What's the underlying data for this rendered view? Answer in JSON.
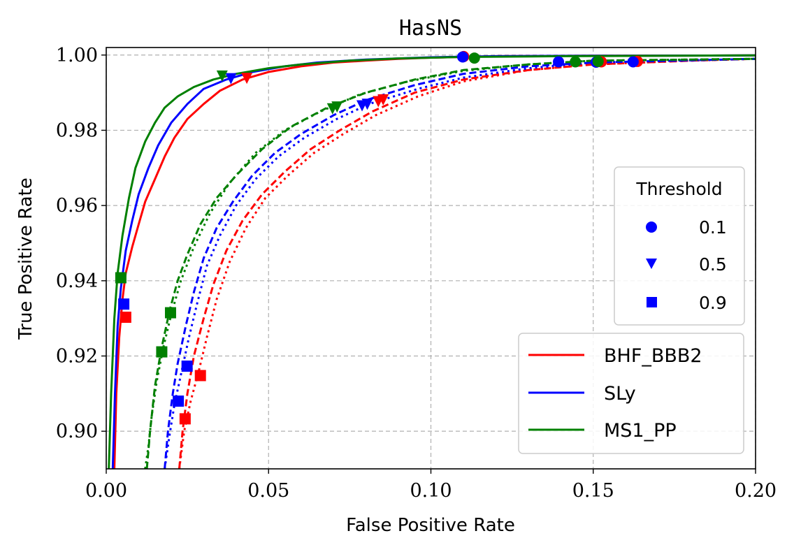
{
  "chart_data": {
    "type": "line",
    "title": "HasNS",
    "xlabel": "False Positive Rate",
    "ylabel": "True Positive Rate",
    "xlim": [
      0.0,
      0.2
    ],
    "ylim": [
      0.89,
      1.002
    ],
    "xticks": [
      0.0,
      0.05,
      0.1,
      0.15,
      0.2
    ],
    "xtick_labels": [
      "0.00",
      "0.05",
      "0.10",
      "0.15",
      "0.20"
    ],
    "yticks": [
      0.9,
      0.92,
      0.94,
      0.96,
      0.98,
      1.0
    ],
    "ytick_labels": [
      "0.90",
      "0.92",
      "0.94",
      "0.96",
      "0.98",
      "1.00"
    ],
    "grid": true,
    "legend_series": {
      "placement": "lower-right",
      "entries": [
        {
          "label": "BHF_BBB2",
          "color": "#ff0000"
        },
        {
          "label": "SLy",
          "color": "#0000ff"
        },
        {
          "label": "MS1_PP",
          "color": "#008000"
        }
      ]
    },
    "legend_threshold": {
      "placement": "center-right",
      "title": "Threshold",
      "entries": [
        {
          "label": "0.1",
          "marker": "circle"
        },
        {
          "label": "0.5",
          "marker": "triangle-down"
        },
        {
          "label": "0.9",
          "marker": "square"
        }
      ]
    },
    "series": [
      {
        "eos": "BHF_BBB2",
        "style": "solid",
        "color": "#ff0000",
        "x": [
          0.0025,
          0.0031,
          0.004,
          0.005,
          0.006,
          0.008,
          0.01,
          0.012,
          0.015,
          0.018,
          0.021,
          0.025,
          0.03,
          0.035,
          0.042,
          0.05,
          0.06,
          0.07,
          0.08,
          0.09,
          0.1,
          0.11,
          0.12,
          0.15,
          0.2
        ],
        "y": [
          0.89,
          0.91,
          0.925,
          0.935,
          0.942,
          0.949,
          0.955,
          0.961,
          0.967,
          0.973,
          0.978,
          0.983,
          0.987,
          0.9905,
          0.9935,
          0.9955,
          0.997,
          0.998,
          0.9985,
          0.999,
          0.9993,
          0.9995,
          0.9997,
          0.9998,
          0.9999
        ]
      },
      {
        "eos": "SLy",
        "style": "solid",
        "color": "#0000ff",
        "x": [
          0.002,
          0.0027,
          0.0035,
          0.0045,
          0.006,
          0.008,
          0.01,
          0.013,
          0.016,
          0.02,
          0.025,
          0.03,
          0.037,
          0.045,
          0.055,
          0.065,
          0.08,
          0.1,
          0.12,
          0.15,
          0.2
        ],
        "y": [
          0.89,
          0.91,
          0.928,
          0.938,
          0.948,
          0.956,
          0.963,
          0.97,
          0.976,
          0.982,
          0.987,
          0.991,
          0.9935,
          0.9955,
          0.997,
          0.998,
          0.9988,
          0.9994,
          0.9997,
          0.9998,
          0.9999
        ]
      },
      {
        "eos": "MS1_PP",
        "style": "solid",
        "color": "#008000",
        "x": [
          0.0008,
          0.0015,
          0.0025,
          0.0035,
          0.005,
          0.007,
          0.009,
          0.012,
          0.015,
          0.018,
          0.022,
          0.027,
          0.033,
          0.04,
          0.05,
          0.06,
          0.075,
          0.09,
          0.11,
          0.14,
          0.2
        ],
        "y": [
          0.89,
          0.91,
          0.93,
          0.942,
          0.952,
          0.962,
          0.97,
          0.977,
          0.982,
          0.986,
          0.989,
          0.9915,
          0.9935,
          0.995,
          0.9965,
          0.9975,
          0.9985,
          0.9991,
          0.9995,
          0.9997,
          0.9999
        ]
      },
      {
        "eos": "BHF_BBB2",
        "style": "dashed",
        "color": "#ff0000",
        "x": [
          0.0225,
          0.0235,
          0.025,
          0.027,
          0.03,
          0.033,
          0.037,
          0.042,
          0.048,
          0.055,
          0.063,
          0.072,
          0.082,
          0.095,
          0.11,
          0.13,
          0.15,
          0.18,
          0.2
        ],
        "y": [
          0.89,
          0.9,
          0.91,
          0.92,
          0.93,
          0.939,
          0.948,
          0.956,
          0.963,
          0.969,
          0.975,
          0.98,
          0.985,
          0.99,
          0.9935,
          0.996,
          0.9975,
          0.9985,
          0.999
        ]
      },
      {
        "eos": "BHF_BBB2",
        "style": "dotted",
        "color": "#ff0000",
        "x": [
          0.0225,
          0.024,
          0.026,
          0.0285,
          0.031,
          0.034,
          0.038,
          0.043,
          0.049,
          0.056,
          0.064,
          0.073,
          0.083,
          0.096,
          0.11,
          0.13,
          0.15,
          0.18,
          0.2
        ],
        "y": [
          0.89,
          0.9,
          0.908,
          0.916,
          0.925,
          0.935,
          0.945,
          0.954,
          0.962,
          0.968,
          0.974,
          0.979,
          0.984,
          0.989,
          0.993,
          0.996,
          0.9975,
          0.9985,
          0.999
        ]
      },
      {
        "eos": "SLy",
        "style": "dashed",
        "color": "#0000ff",
        "x": [
          0.018,
          0.019,
          0.0205,
          0.022,
          0.0245,
          0.027,
          0.03,
          0.034,
          0.039,
          0.045,
          0.052,
          0.06,
          0.07,
          0.08,
          0.095,
          0.11,
          0.13,
          0.15,
          0.2
        ],
        "y": [
          0.89,
          0.9,
          0.91,
          0.918,
          0.928,
          0.937,
          0.946,
          0.954,
          0.961,
          0.968,
          0.974,
          0.979,
          0.984,
          0.988,
          0.992,
          0.995,
          0.997,
          0.998,
          0.999
        ]
      },
      {
        "eos": "SLy",
        "style": "dotted",
        "color": "#0000ff",
        "x": [
          0.018,
          0.0195,
          0.021,
          0.023,
          0.0255,
          0.028,
          0.031,
          0.035,
          0.04,
          0.046,
          0.053,
          0.061,
          0.071,
          0.081,
          0.096,
          0.11,
          0.13,
          0.15,
          0.2
        ],
        "y": [
          0.89,
          0.899,
          0.907,
          0.915,
          0.925,
          0.934,
          0.944,
          0.952,
          0.96,
          0.967,
          0.973,
          0.978,
          0.983,
          0.987,
          0.991,
          0.994,
          0.9965,
          0.998,
          0.999
        ]
      },
      {
        "eos": "MS1_PP",
        "style": "dashed",
        "color": "#008000",
        "x": [
          0.0125,
          0.0135,
          0.015,
          0.017,
          0.0195,
          0.022,
          0.025,
          0.029,
          0.034,
          0.04,
          0.048,
          0.057,
          0.068,
          0.08,
          0.095,
          0.11,
          0.13,
          0.15,
          0.2
        ],
        "y": [
          0.89,
          0.9,
          0.912,
          0.922,
          0.932,
          0.94,
          0.947,
          0.955,
          0.962,
          0.968,
          0.975,
          0.981,
          0.986,
          0.99,
          0.9935,
          0.996,
          0.9975,
          0.9985,
          0.999
        ]
      },
      {
        "eos": "MS1_PP",
        "style": "dotted",
        "color": "#008000",
        "x": [
          0.012,
          0.013,
          0.014,
          0.0155,
          0.0175,
          0.02,
          0.023,
          0.027,
          0.032,
          0.038,
          0.046,
          0.055,
          0.066,
          0.078,
          0.093,
          0.11,
          0.13,
          0.15,
          0.2
        ],
        "y": [
          0.89,
          0.896,
          0.904,
          0.913,
          0.922,
          0.931,
          0.94,
          0.949,
          0.958,
          0.966,
          0.974,
          0.98,
          0.985,
          0.9895,
          0.993,
          0.9958,
          0.9975,
          0.9985,
          0.999
        ]
      }
    ],
    "markers": [
      {
        "shape": "square",
        "color": "#ff0000",
        "x": 0.006,
        "y": 0.9303
      },
      {
        "shape": "square",
        "color": "#0000ff",
        "x": 0.0054,
        "y": 0.9338
      },
      {
        "shape": "square",
        "color": "#008000",
        "x": 0.0045,
        "y": 0.9408
      },
      {
        "shape": "square",
        "color": "#ff0000",
        "x": 0.0243,
        "y": 0.9033
      },
      {
        "shape": "square",
        "color": "#ff0000",
        "x": 0.029,
        "y": 0.9148
      },
      {
        "shape": "square",
        "color": "#0000ff",
        "x": 0.0222,
        "y": 0.908
      },
      {
        "shape": "square",
        "color": "#0000ff",
        "x": 0.0249,
        "y": 0.9173
      },
      {
        "shape": "square",
        "color": "#008000",
        "x": 0.0171,
        "y": 0.9211
      },
      {
        "shape": "square",
        "color": "#008000",
        "x": 0.0198,
        "y": 0.9315
      },
      {
        "shape": "triangle-down",
        "color": "#ff0000",
        "x": 0.0433,
        "y": 0.9938
      },
      {
        "shape": "triangle-down",
        "color": "#0000ff",
        "x": 0.0384,
        "y": 0.9937
      },
      {
        "shape": "triangle-down",
        "color": "#008000",
        "x": 0.0357,
        "y": 0.9944
      },
      {
        "shape": "triangle-down",
        "color": "#ff0000",
        "x": 0.0838,
        "y": 0.9876
      },
      {
        "shape": "triangle-down",
        "color": "#ff0000",
        "x": 0.0853,
        "y": 0.9881
      },
      {
        "shape": "triangle-down",
        "color": "#0000ff",
        "x": 0.0788,
        "y": 0.9865
      },
      {
        "shape": "triangle-down",
        "color": "#0000ff",
        "x": 0.0804,
        "y": 0.9869
      },
      {
        "shape": "triangle-down",
        "color": "#008000",
        "x": 0.0697,
        "y": 0.9857
      },
      {
        "shape": "triangle-down",
        "color": "#008000",
        "x": 0.0711,
        "y": 0.9862
      },
      {
        "shape": "circle",
        "color": "#ff0000",
        "x": 0.1101,
        "y": 0.9996
      },
      {
        "shape": "circle",
        "color": "#0000ff",
        "x": 0.1098,
        "y": 0.9995
      },
      {
        "shape": "circle",
        "color": "#008000",
        "x": 0.1134,
        "y": 0.9992
      },
      {
        "shape": "circle",
        "color": "#ff0000",
        "x": 0.1525,
        "y": 0.9982
      },
      {
        "shape": "circle",
        "color": "#ff0000",
        "x": 0.1636,
        "y": 0.9983
      },
      {
        "shape": "circle",
        "color": "#0000ff",
        "x": 0.1393,
        "y": 0.9982
      },
      {
        "shape": "circle",
        "color": "#0000ff",
        "x": 0.1509,
        "y": 0.9981
      },
      {
        "shape": "circle",
        "color": "#0000ff",
        "x": 0.1623,
        "y": 0.9982
      },
      {
        "shape": "circle",
        "color": "#008000",
        "x": 0.1445,
        "y": 0.9982
      },
      {
        "shape": "circle",
        "color": "#008000",
        "x": 0.1515,
        "y": 0.9983
      }
    ]
  }
}
